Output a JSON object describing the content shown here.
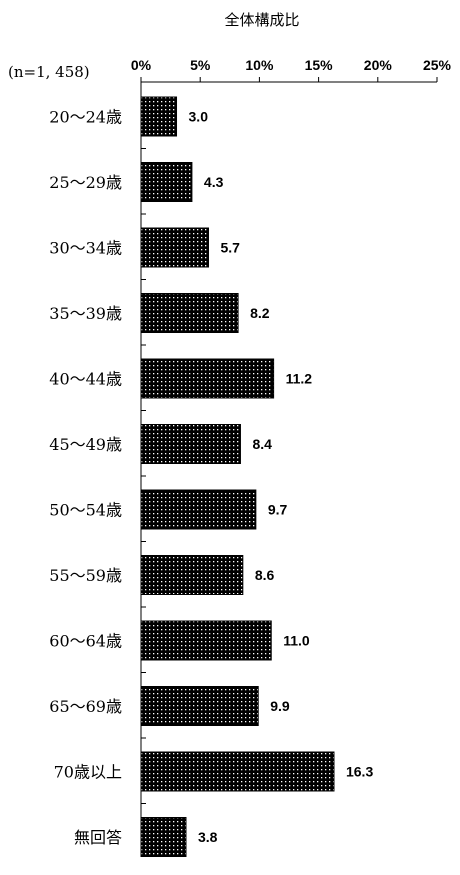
{
  "chart_data": {
    "type": "bar",
    "orientation": "horizontal",
    "title": "全体構成比",
    "sample_note": "(n=1, 458)",
    "categories": [
      "20～24歳",
      "25～29歳",
      "30～34歳",
      "35～39歳",
      "40～44歳",
      "45～49歳",
      "50～54歳",
      "55～59歳",
      "60～64歳",
      "65～69歳",
      "70歳以上",
      "無回答"
    ],
    "values": [
      3.0,
      4.3,
      5.7,
      8.2,
      11.2,
      8.4,
      9.7,
      8.6,
      11.0,
      9.9,
      16.3,
      3.8
    ],
    "value_labels": [
      "3.0",
      "4.3",
      "5.7",
      "8.2",
      "11.2",
      "8.4",
      "9.7",
      "8.6",
      "11.0",
      "9.9",
      "16.3",
      "3.8"
    ],
    "xlim": [
      0,
      25
    ],
    "x_ticks": [
      0,
      5,
      10,
      15,
      20,
      25
    ],
    "x_tick_labels": [
      "0%",
      "5%",
      "10%",
      "15%",
      "20%",
      "25%"
    ],
    "axis_position": "top",
    "grid": false,
    "bar_fill": "#000000",
    "bar_dot_color": "#ffffff"
  }
}
